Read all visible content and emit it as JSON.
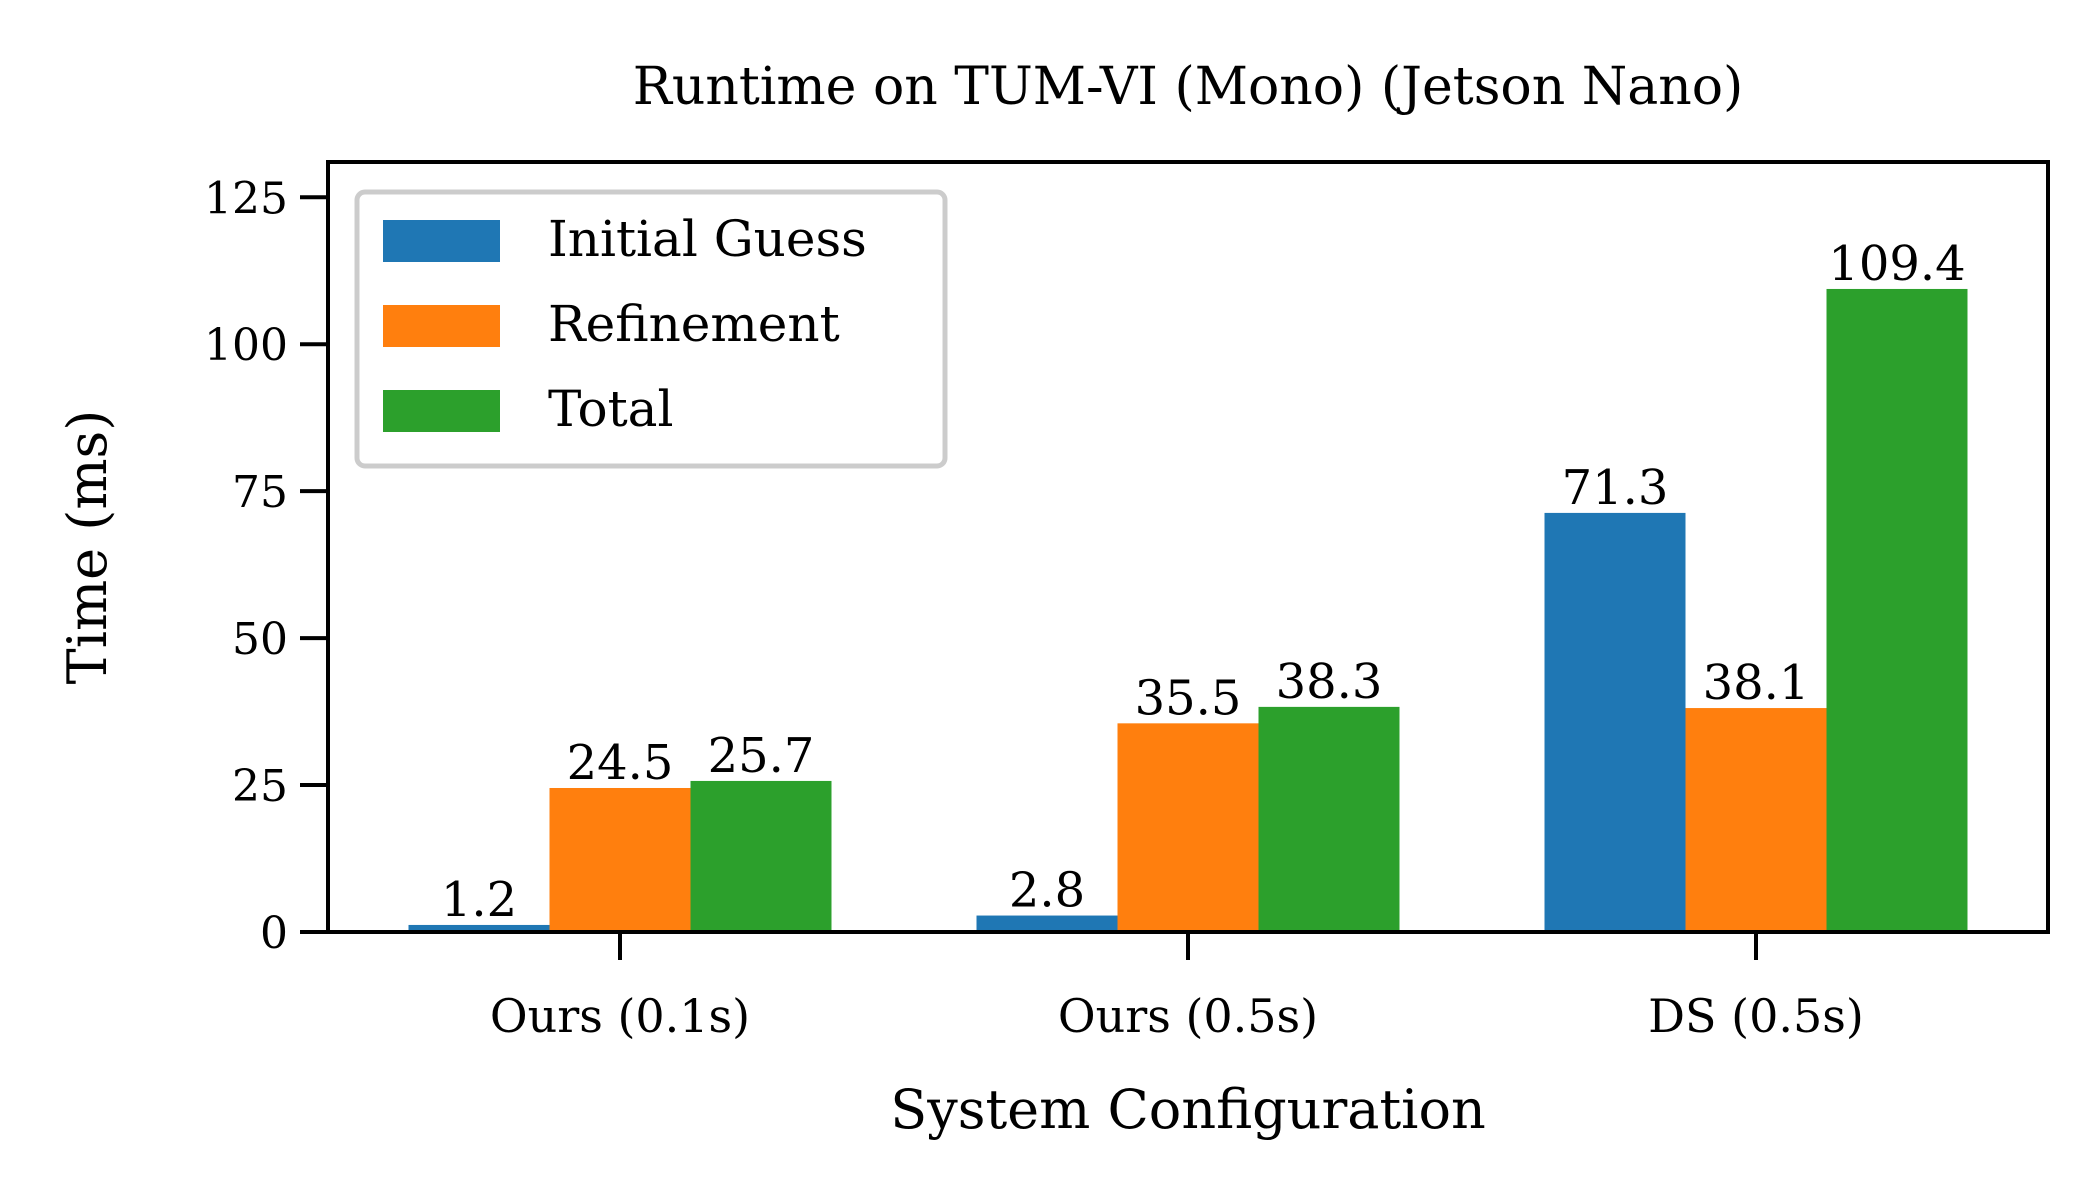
{
  "chart_data": {
    "type": "bar",
    "title": "Runtime on TUM-VI (Mono) (Jetson Nano)",
    "xlabel": "System Configuration",
    "ylabel": "Time (ms)",
    "categories": [
      "Ours (0.1s)",
      "Ours (0.5s)",
      "DS (0.5s)"
    ],
    "series": [
      {
        "name": "Initial Guess",
        "color": "#1f77b4",
        "values": [
          1.2,
          2.8,
          71.3
        ],
        "labels": [
          "1.2",
          "2.8",
          "71.3"
        ]
      },
      {
        "name": "Refinement",
        "color": "#ff7f0e",
        "values": [
          24.5,
          35.5,
          38.1
        ],
        "labels": [
          "24.5",
          "35.5",
          "38.1"
        ]
      },
      {
        "name": "Total",
        "color": "#2ca02c",
        "values": [
          25.7,
          38.3,
          109.4
        ],
        "labels": [
          "25.7",
          "38.3",
          "109.4"
        ]
      }
    ],
    "ylim": [
      0,
      131
    ],
    "yticks": [
      0,
      25,
      50,
      75,
      100,
      125
    ],
    "ytick_labels": [
      "0",
      "25",
      "50",
      "75",
      "100",
      "125"
    ],
    "grid": false,
    "legend": {
      "position": "top-left"
    }
  }
}
